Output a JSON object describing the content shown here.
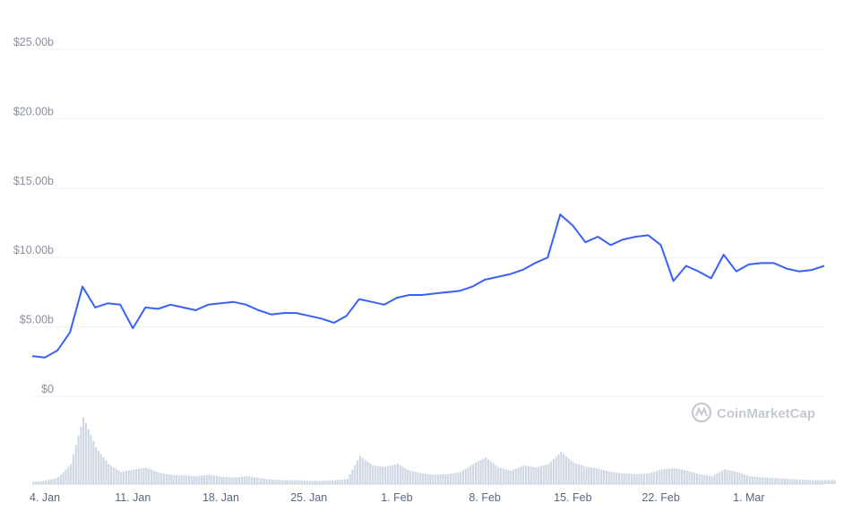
{
  "chart_data": {
    "type": "line",
    "ylim": [
      0,
      25
    ],
    "y_ticks": [
      {
        "value": 0,
        "label": "$0"
      },
      {
        "value": 5,
        "label": "$5.00b"
      },
      {
        "value": 10,
        "label": "$10.00b"
      },
      {
        "value": 15,
        "label": "$15.00b"
      },
      {
        "value": 20,
        "label": "$20.00b"
      },
      {
        "value": 25,
        "label": "$25.00b"
      }
    ],
    "x_start": "2021-01-03",
    "x_end": "2021-03-07",
    "x_ticks": [
      {
        "date": "2021-01-04",
        "label": "4. Jan"
      },
      {
        "date": "2021-01-11",
        "label": "11. Jan"
      },
      {
        "date": "2021-01-18",
        "label": "18. Jan"
      },
      {
        "date": "2021-01-25",
        "label": "25. Jan"
      },
      {
        "date": "2021-02-01",
        "label": "1. Feb"
      },
      {
        "date": "2021-02-08",
        "label": "8. Feb"
      },
      {
        "date": "2021-02-15",
        "label": "15. Feb"
      },
      {
        "date": "2021-02-22",
        "label": "22. Feb"
      },
      {
        "date": "2021-03-01",
        "label": "1. Mar"
      }
    ],
    "grid": true,
    "line_color": "#3861fb",
    "volume_color": "#cfd6e4",
    "series": [
      {
        "values": [
          [
            "2021-01-03",
            2.9
          ],
          [
            "2021-01-04",
            2.8
          ],
          [
            "2021-01-05",
            3.3
          ],
          [
            "2021-01-06",
            4.6
          ],
          [
            "2021-01-07",
            7.9
          ],
          [
            "2021-01-08",
            6.4
          ],
          [
            "2021-01-09",
            6.7
          ],
          [
            "2021-01-10",
            6.6
          ],
          [
            "2021-01-11",
            4.9
          ],
          [
            "2021-01-12",
            6.4
          ],
          [
            "2021-01-13",
            6.3
          ],
          [
            "2021-01-14",
            6.6
          ],
          [
            "2021-01-15",
            6.4
          ],
          [
            "2021-01-16",
            6.2
          ],
          [
            "2021-01-17",
            6.6
          ],
          [
            "2021-01-18",
            6.7
          ],
          [
            "2021-01-19",
            6.8
          ],
          [
            "2021-01-20",
            6.6
          ],
          [
            "2021-01-21",
            6.2
          ],
          [
            "2021-01-22",
            5.9
          ],
          [
            "2021-01-23",
            6.0
          ],
          [
            "2021-01-24",
            6.0
          ],
          [
            "2021-01-25",
            5.8
          ],
          [
            "2021-01-26",
            5.6
          ],
          [
            "2021-01-27",
            5.3
          ],
          [
            "2021-01-28",
            5.8
          ],
          [
            "2021-01-29",
            7.0
          ],
          [
            "2021-01-30",
            6.8
          ],
          [
            "2021-01-31",
            6.6
          ],
          [
            "2021-02-01",
            7.1
          ],
          [
            "2021-02-02",
            7.3
          ],
          [
            "2021-02-03",
            7.3
          ],
          [
            "2021-02-04",
            7.4
          ],
          [
            "2021-02-05",
            7.5
          ],
          [
            "2021-02-06",
            7.6
          ],
          [
            "2021-02-07",
            7.9
          ],
          [
            "2021-02-08",
            8.4
          ],
          [
            "2021-02-09",
            8.6
          ],
          [
            "2021-02-10",
            8.8
          ],
          [
            "2021-02-11",
            9.1
          ],
          [
            "2021-02-12",
            9.6
          ],
          [
            "2021-02-13",
            10.0
          ],
          [
            "2021-02-14",
            13.1
          ],
          [
            "2021-02-15",
            12.3
          ],
          [
            "2021-02-16",
            11.1
          ],
          [
            "2021-02-17",
            11.5
          ],
          [
            "2021-02-18",
            10.9
          ],
          [
            "2021-02-19",
            11.3
          ],
          [
            "2021-02-20",
            11.5
          ],
          [
            "2021-02-21",
            11.6
          ],
          [
            "2021-02-22",
            10.9
          ],
          [
            "2021-02-23",
            8.3
          ],
          [
            "2021-02-24",
            9.4
          ],
          [
            "2021-02-25",
            9.0
          ],
          [
            "2021-02-26",
            8.5
          ],
          [
            "2021-02-27",
            10.2
          ],
          [
            "2021-02-28",
            9.0
          ],
          [
            "2021-03-01",
            9.5
          ],
          [
            "2021-03-02",
            9.6
          ],
          [
            "2021-03-03",
            9.6
          ],
          [
            "2021-03-04",
            9.2
          ],
          [
            "2021-03-05",
            9.0
          ],
          [
            "2021-03-06",
            9.1
          ],
          [
            "2021-03-07",
            9.4
          ]
        ]
      }
    ],
    "volume_relative": [
      [
        "2021-01-03",
        0.04
      ],
      [
        "2021-01-04",
        0.05
      ],
      [
        "2021-01-05",
        0.1
      ],
      [
        "2021-01-06",
        0.3
      ],
      [
        "2021-01-07",
        1.0
      ],
      [
        "2021-01-08",
        0.55
      ],
      [
        "2021-01-09",
        0.3
      ],
      [
        "2021-01-10",
        0.18
      ],
      [
        "2021-01-11",
        0.22
      ],
      [
        "2021-01-12",
        0.25
      ],
      [
        "2021-01-13",
        0.17
      ],
      [
        "2021-01-14",
        0.14
      ],
      [
        "2021-01-15",
        0.13
      ],
      [
        "2021-01-16",
        0.12
      ],
      [
        "2021-01-17",
        0.14
      ],
      [
        "2021-01-18",
        0.11
      ],
      [
        "2021-01-19",
        0.1
      ],
      [
        "2021-01-20",
        0.12
      ],
      [
        "2021-01-21",
        0.09
      ],
      [
        "2021-01-22",
        0.07
      ],
      [
        "2021-01-23",
        0.06
      ],
      [
        "2021-01-24",
        0.06
      ],
      [
        "2021-01-25",
        0.05
      ],
      [
        "2021-01-26",
        0.05
      ],
      [
        "2021-01-27",
        0.06
      ],
      [
        "2021-01-28",
        0.08
      ],
      [
        "2021-01-29",
        0.42
      ],
      [
        "2021-01-30",
        0.28
      ],
      [
        "2021-01-31",
        0.26
      ],
      [
        "2021-02-01",
        0.3
      ],
      [
        "2021-02-02",
        0.2
      ],
      [
        "2021-02-03",
        0.16
      ],
      [
        "2021-02-04",
        0.14
      ],
      [
        "2021-02-05",
        0.15
      ],
      [
        "2021-02-06",
        0.18
      ],
      [
        "2021-02-07",
        0.3
      ],
      [
        "2021-02-08",
        0.4
      ],
      [
        "2021-02-09",
        0.25
      ],
      [
        "2021-02-10",
        0.2
      ],
      [
        "2021-02-11",
        0.28
      ],
      [
        "2021-02-12",
        0.25
      ],
      [
        "2021-02-13",
        0.3
      ],
      [
        "2021-02-14",
        0.48
      ],
      [
        "2021-02-15",
        0.32
      ],
      [
        "2021-02-16",
        0.26
      ],
      [
        "2021-02-17",
        0.23
      ],
      [
        "2021-02-18",
        0.18
      ],
      [
        "2021-02-19",
        0.16
      ],
      [
        "2021-02-20",
        0.15
      ],
      [
        "2021-02-21",
        0.16
      ],
      [
        "2021-02-22",
        0.22
      ],
      [
        "2021-02-23",
        0.24
      ],
      [
        "2021-02-24",
        0.2
      ],
      [
        "2021-02-25",
        0.15
      ],
      [
        "2021-02-26",
        0.12
      ],
      [
        "2021-02-27",
        0.22
      ],
      [
        "2021-02-28",
        0.18
      ],
      [
        "2021-03-01",
        0.12
      ],
      [
        "2021-03-02",
        0.1
      ],
      [
        "2021-03-03",
        0.09
      ],
      [
        "2021-03-04",
        0.08
      ],
      [
        "2021-03-05",
        0.07
      ],
      [
        "2021-03-06",
        0.06
      ],
      [
        "2021-03-07",
        0.06
      ]
    ]
  },
  "watermark": {
    "text": "CoinMarketCap",
    "icon": "coinmarketcap-logo-icon"
  }
}
